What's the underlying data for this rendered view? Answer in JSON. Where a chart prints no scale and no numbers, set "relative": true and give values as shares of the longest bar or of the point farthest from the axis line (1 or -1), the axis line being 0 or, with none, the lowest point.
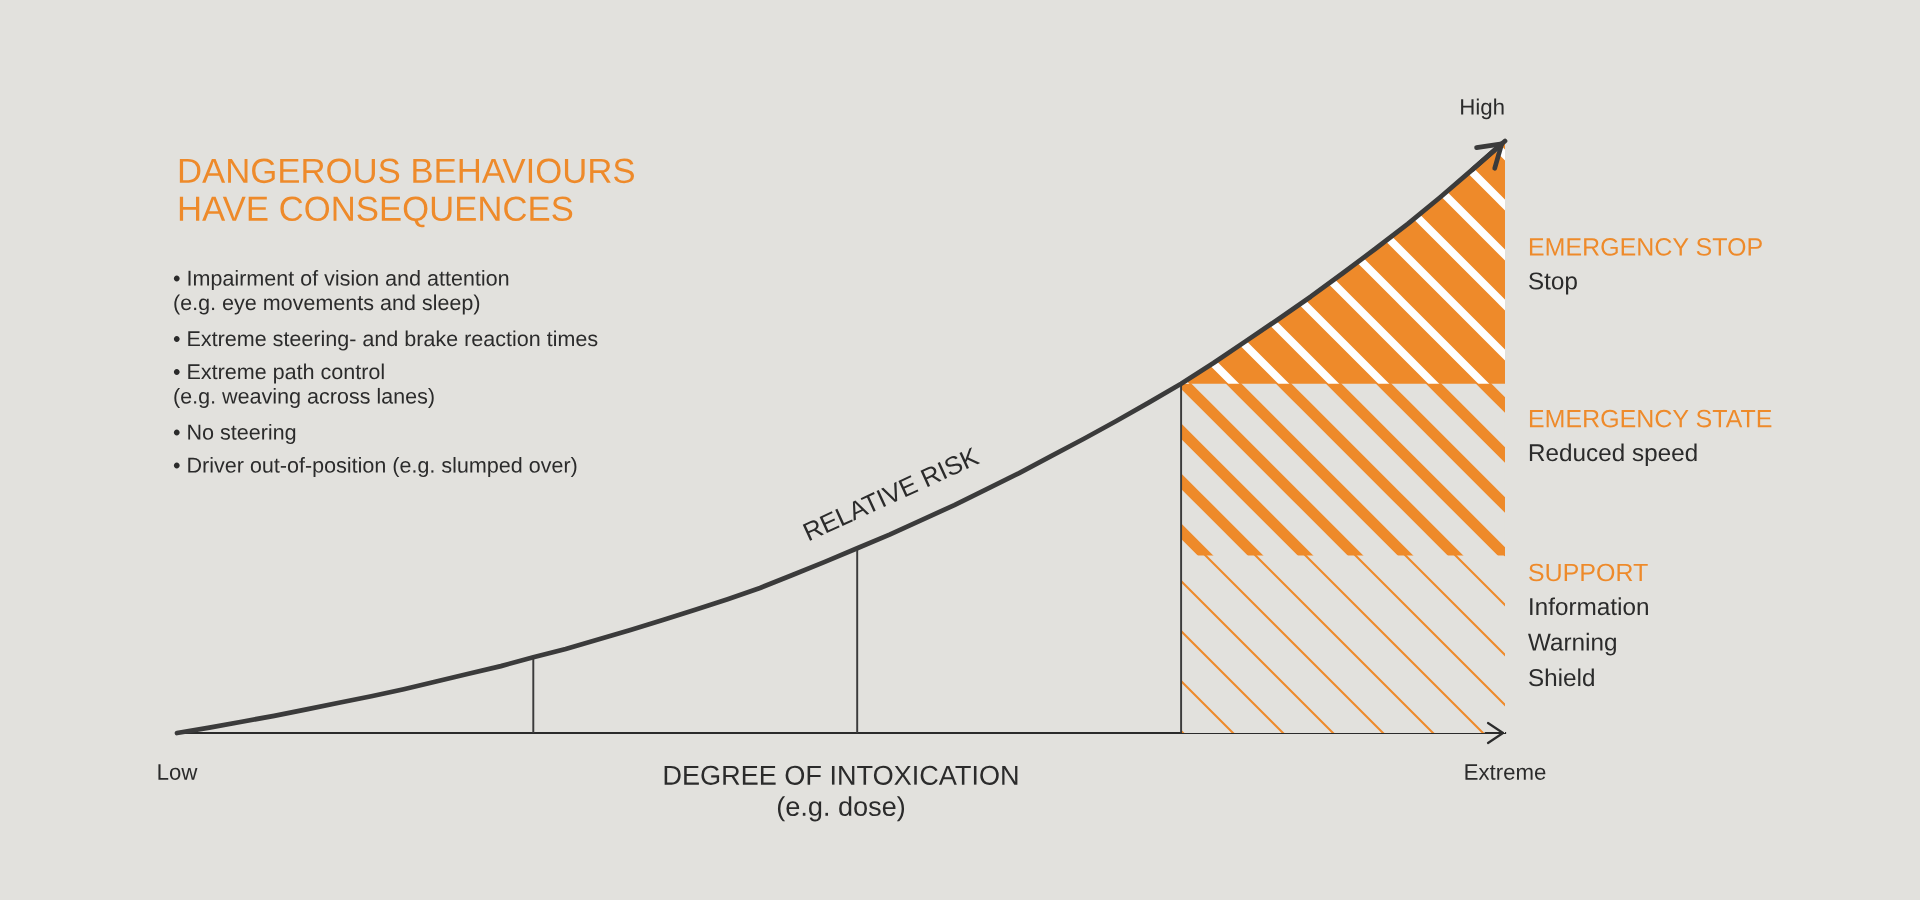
{
  "chart_data": {
    "type": "line",
    "title": "DANGEROUS BEHAVIOURS\nHAVE CONSEQUENCES",
    "xlabel": "DEGREE OF INTOXICATION\n(e.g. dose)",
    "categories": [
      "Low",
      null,
      null,
      null,
      null,
      null,
      null,
      null,
      null,
      null,
      null,
      null,
      null,
      null,
      null,
      null,
      null,
      null,
      null,
      null,
      null,
      null,
      null,
      null,
      null,
      null,
      null,
      null,
      null,
      null,
      null,
      null,
      null,
      null,
      null,
      null,
      null,
      null,
      null,
      null,
      null,
      "Extreme"
    ],
    "relative": true,
    "series": [
      {
        "name": "RELATIVE RISK",
        "color": "#3b3b3b",
        "values": [
          0,
          0.009,
          0.019,
          0.029,
          0.04,
          0.051,
          0.062,
          0.074,
          0.087,
          0.1,
          0.113,
          0.128,
          0.142,
          0.158,
          0.174,
          0.191,
          0.208,
          0.226,
          0.245,
          0.267,
          0.289,
          0.312,
          0.335,
          0.36,
          0.385,
          0.412,
          0.439,
          0.468,
          0.497,
          0.527,
          0.558,
          0.59,
          0.625,
          0.662,
          0.699,
          0.737,
          0.777,
          0.818,
          0.86,
          0.905,
          0.952,
          1
        ]
      },
      {
        "type": "bar",
        "color": "#3b3b3b",
        "values": [
          null,
          null,
          null,
          null,
          null,
          null,
          null,
          null,
          null,
          null,
          null,
          0.128,
          null,
          null,
          null,
          null,
          null,
          null,
          null,
          null,
          null,
          0.312,
          null,
          null,
          null,
          null,
          null,
          null,
          null,
          null,
          null,
          0.59,
          null,
          null,
          null,
          null,
          null,
          null,
          null,
          null,
          null,
          null
        ]
      },
      {
        "name": "SUPPORT",
        "type": "area",
        "color": "#ee8a2a",
        "values": [
          null,
          null,
          null,
          null,
          null,
          null,
          null,
          null,
          null,
          null,
          null,
          null,
          null,
          null,
          null,
          null,
          null,
          null,
          null,
          null,
          null,
          null,
          null,
          null,
          null,
          null,
          null,
          null,
          null,
          null,
          null,
          0.3,
          0.3,
          0.3,
          0.3,
          0.3,
          0.3,
          0.3,
          0.3,
          0.3,
          0.3,
          0.3
        ]
      },
      {
        "name": "EMERGENCY STATE",
        "type": "area",
        "color": "#ee8a2a",
        "values": [
          null,
          null,
          null,
          null,
          null,
          null,
          null,
          null,
          null,
          null,
          null,
          null,
          null,
          null,
          null,
          null,
          null,
          null,
          null,
          null,
          null,
          null,
          null,
          null,
          null,
          null,
          null,
          null,
          null,
          null,
          null,
          0.59,
          0.59,
          0.59,
          0.59,
          0.59,
          0.59,
          0.59,
          0.59,
          0.59,
          0.59,
          0.59
        ]
      },
      {
        "name": "EMERGENCY STOP",
        "type": "area",
        "color": "#ee8a2a",
        "values": [
          null,
          null,
          null,
          null,
          null,
          null,
          null,
          null,
          null,
          null,
          null,
          null,
          null,
          null,
          null,
          null,
          null,
          null,
          null,
          null,
          null,
          null,
          null,
          null,
          null,
          null,
          null,
          null,
          null,
          null,
          null,
          0.59,
          0.625,
          0.662,
          0.699,
          0.737,
          0.777,
          0.818,
          0.86,
          0.905,
          0.952,
          1
        ]
      }
    ],
    "annotations": [
      "• Impairment of vision and attention\n(e.g. eye movements and sleep)",
      "• Extreme steering- and brake reaction times",
      "• Extreme path control\n(e.g. weaving across lanes)",
      "• No steering",
      "• Driver out-of-position (e.g. slumped over)",
      {
        "text": "High",
        "x": "Extreme",
        "y": 1
      },
      {
        "text": "Stop",
        "x": "Extreme",
        "y": 0.76
      },
      {
        "text": "Reduced speed",
        "x": "Extreme",
        "y": 0.47
      },
      {
        "text": "Information",
        "x": "Extreme",
        "y": 0.21
      },
      {
        "text": "Warning",
        "x": "Extreme",
        "y": 0.15
      },
      {
        "text": "Shield",
        "x": "Extreme",
        "y": 0.09
      }
    ]
  }
}
